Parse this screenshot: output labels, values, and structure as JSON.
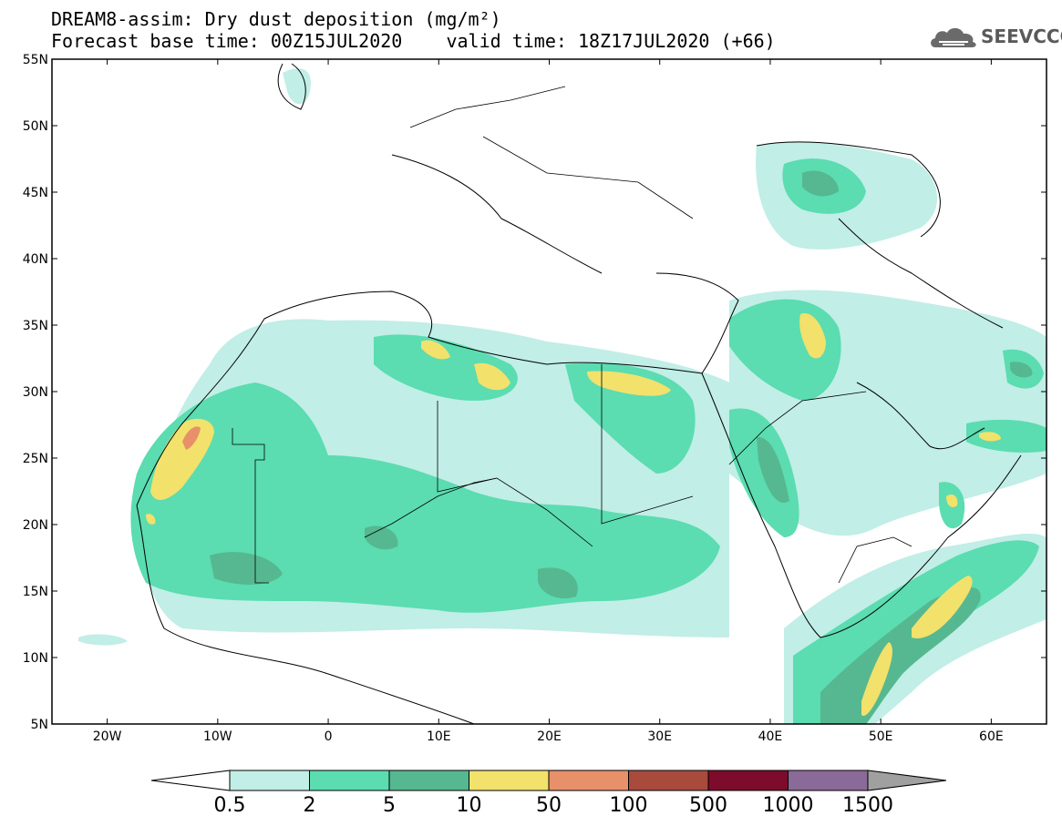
{
  "header": {
    "title_line1": "DREAM8-assim: Dry dust deposition (mg/m²)",
    "title_line2": "Forecast base time: 00Z15JUL2020    valid time: 18Z17JUL2020 (+66)",
    "logo_text": "SEEVCCC",
    "logo_icon": "cloud-icon"
  },
  "map": {
    "lon_range": [
      -25,
      65
    ],
    "lat_range": [
      5,
      55
    ],
    "lat_ticks": [
      {
        "value": 55,
        "label": "55N"
      },
      {
        "value": 50,
        "label": "50N"
      },
      {
        "value": 45,
        "label": "45N"
      },
      {
        "value": 40,
        "label": "40N"
      },
      {
        "value": 35,
        "label": "35N"
      },
      {
        "value": 30,
        "label": "30N"
      },
      {
        "value": 25,
        "label": "25N"
      },
      {
        "value": 20,
        "label": "20N"
      },
      {
        "value": 15,
        "label": "15N"
      },
      {
        "value": 10,
        "label": "10N"
      },
      {
        "value": 5,
        "label": "5N"
      }
    ],
    "lon_ticks": [
      {
        "value": -20,
        "label": "20W"
      },
      {
        "value": -10,
        "label": "10W"
      },
      {
        "value": 0,
        "label": "0"
      },
      {
        "value": 10,
        "label": "10E"
      },
      {
        "value": 20,
        "label": "20E"
      },
      {
        "value": 30,
        "label": "30E"
      },
      {
        "value": 40,
        "label": "40E"
      },
      {
        "value": 50,
        "label": "50E"
      },
      {
        "value": 60,
        "label": "60E"
      }
    ]
  },
  "colorbar": {
    "colors": [
      "#c1eee6",
      "#5bdcb1",
      "#56b890",
      "#f2e16b",
      "#e8906a",
      "#a84a3c",
      "#7d0b2b",
      "#8a6a98"
    ],
    "left_arrow_color": "#ffffff",
    "right_arrow_color": "#a0a0a0",
    "labels": [
      "0.5",
      "2",
      "5",
      "10",
      "50",
      "100",
      "500",
      "1000",
      "1500"
    ]
  }
}
